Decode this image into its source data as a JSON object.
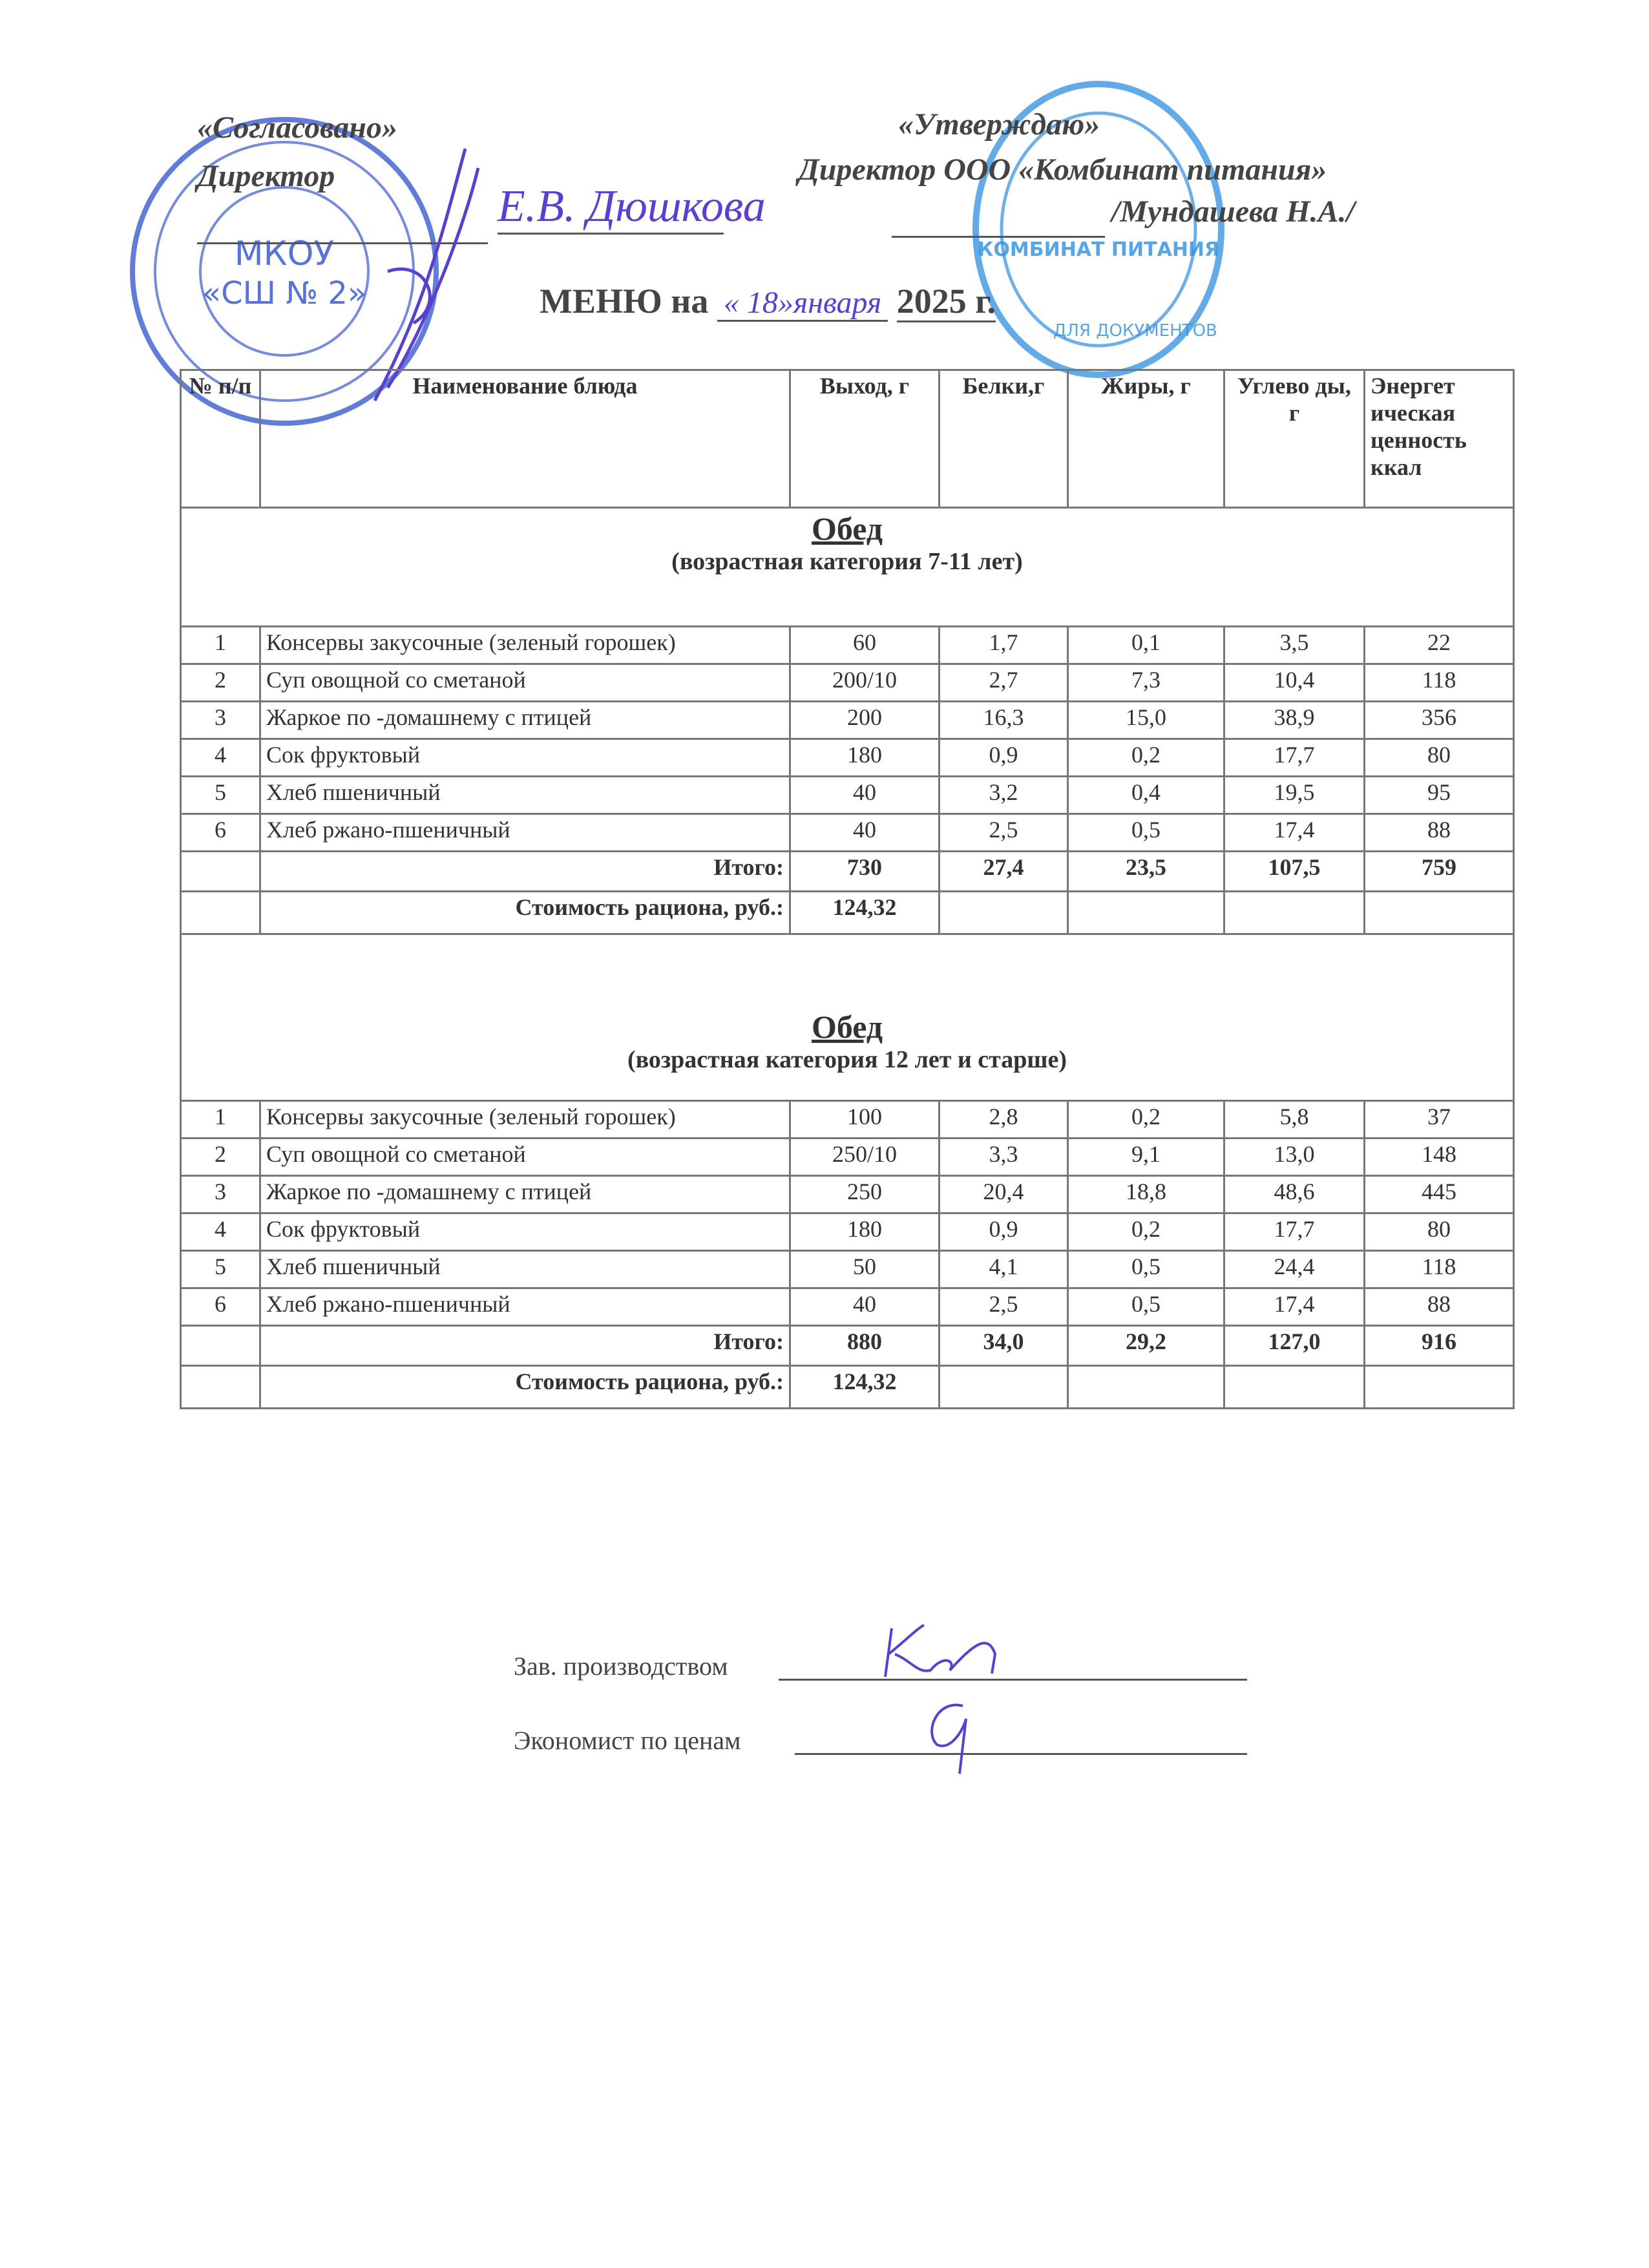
{
  "header": {
    "left_approval": "«Согласовано»",
    "left_title": "Директор",
    "left_name_handwritten": "Е.В. Дюшкова",
    "right_approval": "«Утверждаю»",
    "right_title": "Директор ООО «Комбинат питания»",
    "right_name": "/Мундашева Н.А./",
    "menu_prefix": "МЕНЮ на",
    "menu_date_handwritten": "« 18»января",
    "menu_year": "2025 г."
  },
  "stamps": {
    "left_text": "МКОУ «СШ № 2»",
    "right_text": "КОМБИНАТ ПИТАНИЯ ДЛЯ ДОКУМЕНТОВ",
    "left_color": "#3a5bd0",
    "right_color": "#2f8fe0"
  },
  "table": {
    "headers": [
      "№ п/п",
      "Наименование блюда",
      "Выход, г",
      "Белки,г",
      "Жиры, г",
      "Углево ды, г",
      "Энергет ическая ценность ккал"
    ],
    "sections": [
      {
        "title": "Обед",
        "subtitle": "(возрастная категория 7-11 лет)",
        "rows": [
          [
            "1",
            "Консервы закусочные (зеленый горошек)",
            "60",
            "1,7",
            "0,1",
            "3,5",
            "22"
          ],
          [
            "2",
            "Суп овощной со сметаной",
            "200/10",
            "2,7",
            "7,3",
            "10,4",
            "118"
          ],
          [
            "3",
            "Жаркое по -домашнему с птицей",
            "200",
            "16,3",
            "15,0",
            "38,9",
            "356"
          ],
          [
            "4",
            "Сок фруктовый",
            "180",
            "0,9",
            "0,2",
            "17,7",
            "80"
          ],
          [
            "5",
            "Хлеб пшеничный",
            "40",
            "3,2",
            "0,4",
            "19,5",
            "95"
          ],
          [
            "6",
            "Хлеб ржано-пшеничный",
            "40",
            "2,5",
            "0,5",
            "17,4",
            "88"
          ]
        ],
        "total_label": "Итого:",
        "total": [
          "730",
          "27,4",
          "23,5",
          "107,5",
          "759"
        ],
        "cost_label": "Стоимость рациона, руб.:",
        "cost": "124,32"
      },
      {
        "title": "Обед",
        "subtitle": "(возрастная категория 12 лет и старше)",
        "rows": [
          [
            "1",
            "Консервы закусочные (зеленый горошек)",
            "100",
            "2,8",
            "0,2",
            "5,8",
            "37"
          ],
          [
            "2",
            "Суп овощной со сметаной",
            "250/10",
            "3,3",
            "9,1",
            "13,0",
            "148"
          ],
          [
            "3",
            "Жаркое по -домашнему с птицей",
            "250",
            "20,4",
            "18,8",
            "48,6",
            "445"
          ],
          [
            "4",
            "Сок фруктовый",
            "180",
            "0,9",
            "0,2",
            "17,7",
            "80"
          ],
          [
            "5",
            "Хлеб пшеничный",
            "50",
            "4,1",
            "0,5",
            "24,4",
            "118"
          ],
          [
            "6",
            "Хлеб ржано-пшеничный",
            "40",
            "2,5",
            "0,5",
            "17,4",
            "88"
          ]
        ],
        "total_label": "Итого:",
        "total": [
          "880",
          "34,0",
          "29,2",
          "127,0",
          "916"
        ],
        "cost_label": "Стоимость рациона, руб.:",
        "cost": "124,32"
      }
    ]
  },
  "signatures": {
    "production_label": "Зав. производством",
    "economist_label": "Экономист по ценам"
  }
}
